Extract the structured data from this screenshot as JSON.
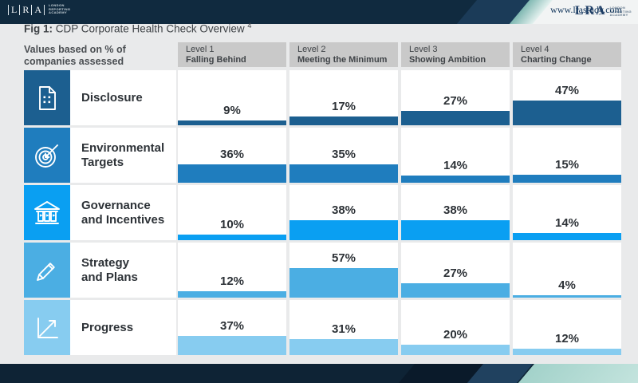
{
  "brand": {
    "name": "LRA",
    "sub_lines": [
      "LONDON",
      "REPORTING",
      "ACADEMY"
    ],
    "website": "www.lrastudy.com"
  },
  "figure": {
    "label": "Fig 1:",
    "title": " CDP Corporate Health Check Overview",
    "footnote_marker": "4",
    "caption": "Values based on % of companies assessed"
  },
  "columns": [
    {
      "level": "Level 1",
      "name": "Falling Behind"
    },
    {
      "level": "Level 2",
      "name": "Meeting the Minimum"
    },
    {
      "level": "Level 3",
      "name": "Showing Ambition"
    },
    {
      "level": "Level 4",
      "name": "Charting Change"
    }
  ],
  "rows": [
    {
      "label": "Disclosure",
      "icon": "document-icon",
      "color": "#1C5F90",
      "values": [
        9,
        17,
        27,
        47
      ]
    },
    {
      "label": "Environmental\nTargets",
      "icon": "target-icon",
      "color": "#1F7DBE",
      "values": [
        36,
        35,
        14,
        15
      ]
    },
    {
      "label": "Governance\nand Incentives",
      "icon": "bank-icon",
      "color": "#0A9FF2",
      "values": [
        10,
        38,
        38,
        14
      ]
    },
    {
      "label": "Strategy\nand Plans",
      "icon": "pencil-icon",
      "color": "#4BAEE3",
      "values": [
        12,
        57,
        27,
        4
      ]
    },
    {
      "label": "Progress",
      "icon": "chart-icon",
      "color": "#87CCF0",
      "values": [
        37,
        31,
        20,
        12
      ]
    }
  ],
  "chart_data": {
    "type": "bar",
    "title": "Fig 1: CDP Corporate Health Check Overview",
    "note": "Values based on % of companies assessed",
    "unit": "%",
    "categories": [
      "Level 1 Falling Behind",
      "Level 2 Meeting the Minimum",
      "Level 3 Showing Ambition",
      "Level 4 Charting Change"
    ],
    "series": [
      {
        "name": "Disclosure",
        "values": [
          9,
          17,
          27,
          47
        ],
        "color": "#1C5F90"
      },
      {
        "name": "Environmental Targets",
        "values": [
          36,
          35,
          14,
          15
        ],
        "color": "#1F7DBE"
      },
      {
        "name": "Governance and Incentives",
        "values": [
          10,
          38,
          38,
          14
        ],
        "color": "#0A9FF2"
      },
      {
        "name": "Strategy and Plans",
        "values": [
          12,
          57,
          27,
          4
        ],
        "color": "#4BAEE3"
      },
      {
        "name": "Progress",
        "values": [
          37,
          31,
          20,
          12
        ],
        "color": "#87CCF0"
      }
    ],
    "ylim": [
      0,
      100
    ],
    "grid": false,
    "legend_position": "none",
    "layout": "matrix of per-cell bars anchored to row baseline, value label above each bar"
  }
}
